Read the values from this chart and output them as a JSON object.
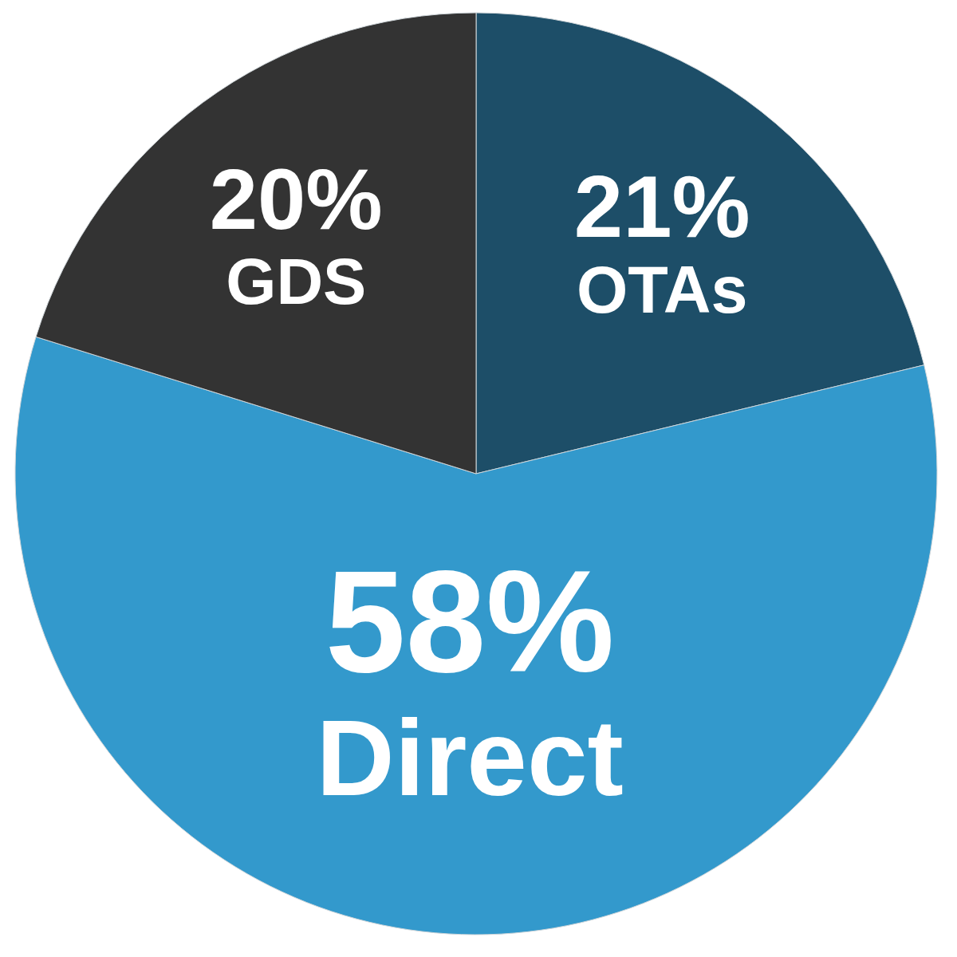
{
  "chart_data": {
    "type": "pie",
    "categories": [
      "OTAs",
      "Direct",
      "GDS"
    ],
    "values": [
      21,
      58,
      20
    ],
    "colors": [
      "#1d4e68",
      "#3399cc",
      "#333333"
    ],
    "value_labels": [
      "21%",
      "58%",
      "20%"
    ]
  }
}
